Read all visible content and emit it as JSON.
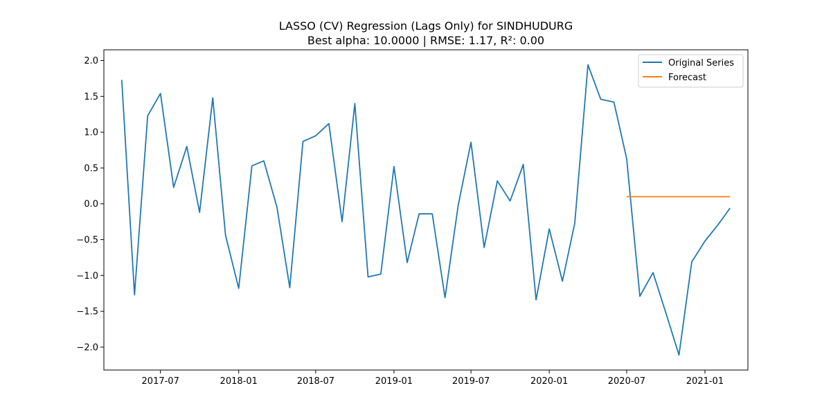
{
  "chart_data": {
    "type": "line",
    "title": "LASSO (CV) Regression (Lags Only) for SINDHUDURG",
    "subtitle": "Best alpha: 10.0000 | RMSE: 1.17, R²: 0.00",
    "xlabel": "",
    "ylabel": "",
    "x_ticks": [
      "2017-07",
      "2018-01",
      "2018-07",
      "2019-01",
      "2019-07",
      "2020-01",
      "2020-07",
      "2021-01"
    ],
    "y_ticks": [
      "−2.0",
      "−1.5",
      "−1.0",
      "−0.5",
      "0.0",
      "0.5",
      "1.0",
      "1.5",
      "2.0"
    ],
    "xlim": [
      "2017-02-18",
      "2021-04-12"
    ],
    "ylim": [
      -2.32,
      2.15
    ],
    "grid": false,
    "legend_position": "top-right",
    "series": [
      {
        "name": "Original Series",
        "color": "#1f77b4",
        "x": [
          "2017-04-01",
          "2017-05-01",
          "2017-06-01",
          "2017-07-01",
          "2017-08-01",
          "2017-09-01",
          "2017-10-01",
          "2017-11-01",
          "2017-12-01",
          "2018-01-01",
          "2018-02-01",
          "2018-03-01",
          "2018-04-01",
          "2018-05-01",
          "2018-06-01",
          "2018-07-01",
          "2018-08-01",
          "2018-09-01",
          "2018-10-01",
          "2018-11-01",
          "2018-12-01",
          "2019-01-01",
          "2019-02-01",
          "2019-03-01",
          "2019-04-01",
          "2019-05-01",
          "2019-06-01",
          "2019-07-01",
          "2019-08-01",
          "2019-09-01",
          "2019-10-01",
          "2019-11-01",
          "2019-12-01",
          "2020-01-01",
          "2020-02-01",
          "2020-03-01",
          "2020-04-01",
          "2020-05-01",
          "2020-06-01",
          "2020-07-01",
          "2020-08-01",
          "2020-09-01",
          "2020-10-01",
          "2020-11-01",
          "2020-12-01",
          "2021-01-01",
          "2021-02-01",
          "2021-03-01"
        ],
        "values": [
          1.73,
          -1.27,
          1.23,
          1.54,
          0.23,
          0.8,
          -0.12,
          1.48,
          -0.44,
          -1.18,
          0.53,
          0.6,
          -0.05,
          -1.17,
          0.87,
          0.95,
          1.12,
          -0.25,
          1.4,
          -1.02,
          -0.98,
          0.52,
          -0.82,
          -0.14,
          -0.14,
          -1.31,
          -0.02,
          0.86,
          -0.61,
          0.32,
          0.04,
          0.55,
          -1.34,
          -0.35,
          -1.08,
          -0.27,
          1.94,
          1.46,
          1.42,
          0.63,
          -1.29,
          -0.96,
          -1.52,
          -2.11,
          -0.81,
          -0.52,
          -0.29,
          -0.06
        ]
      },
      {
        "name": "Forecast",
        "color": "#ff7f0e",
        "x": [
          "2020-07-01",
          "2020-08-01",
          "2020-09-01",
          "2020-10-01",
          "2020-11-01",
          "2020-12-01",
          "2021-01-01",
          "2021-02-01",
          "2021-03-01"
        ],
        "values": [
          0.1,
          0.1,
          0.1,
          0.1,
          0.1,
          0.1,
          0.1,
          0.1,
          0.1
        ]
      }
    ]
  }
}
